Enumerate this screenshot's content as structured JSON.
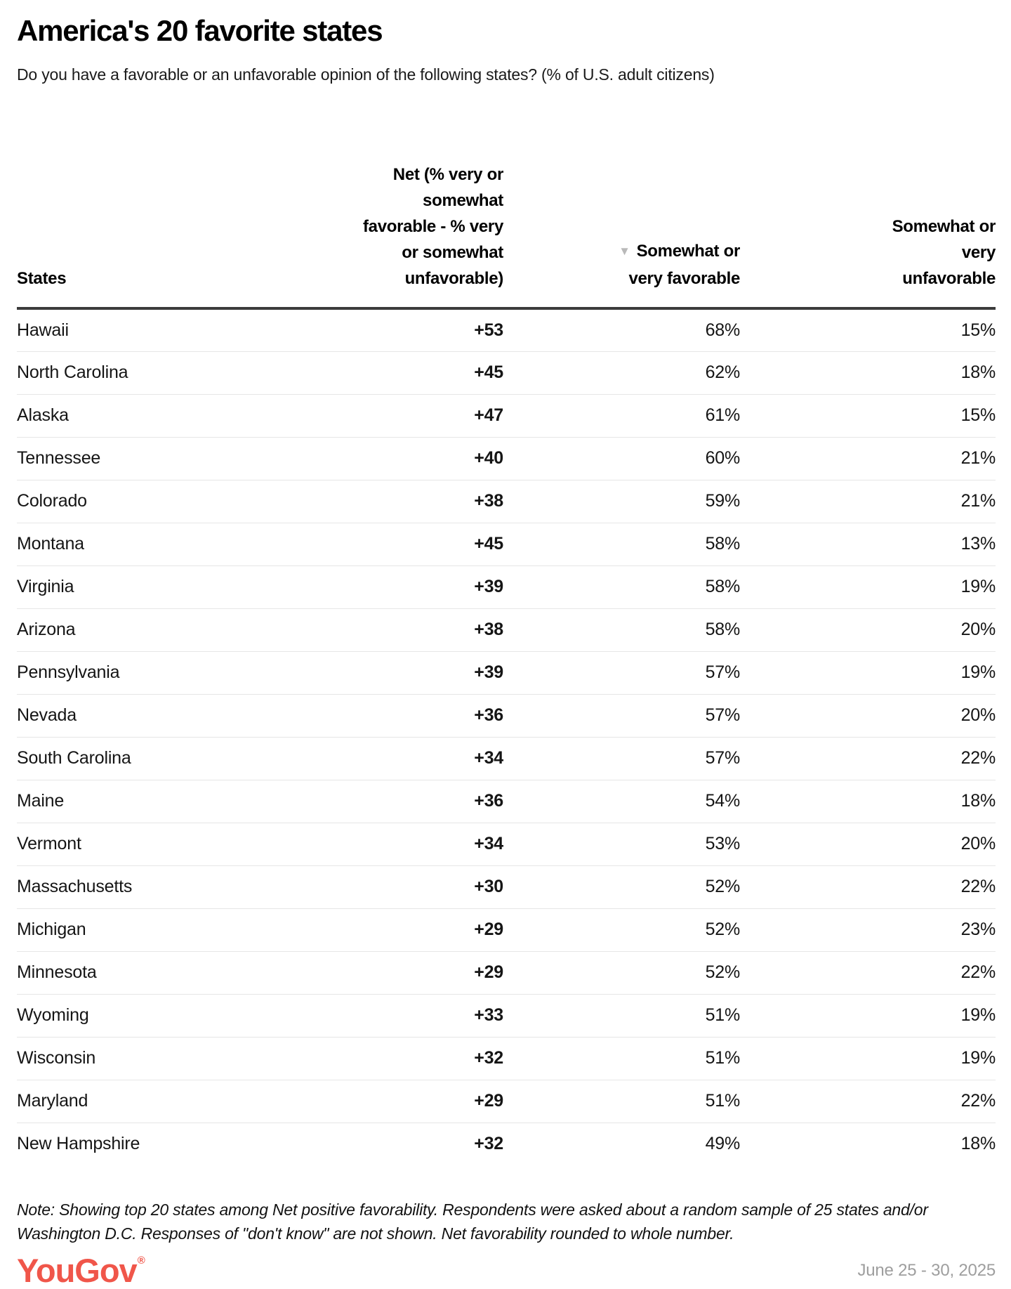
{
  "header": {
    "title": "America's 20 favorite states",
    "subtitle": "Do you have a favorable or an unfavorable opinion of the following states? (% of U.S. adult citizens)"
  },
  "chart_data": {
    "type": "table",
    "title": "America's 20 favorite states",
    "subtitle": "Do you have a favorable or an unfavorable opinion of the following states? (% of U.S. adult citizens)",
    "columns": {
      "states": "States",
      "net": "Net (% very or\nsomewhat\nfavorable - % very\nor somewhat\nunfavorable)",
      "favorable": "Somewhat or\nvery favorable",
      "unfavorable": "Somewhat or\nvery\nunfavorable"
    },
    "sort": {
      "column": "Somewhat or very favorable",
      "direction": "descending",
      "indicator": "▼"
    },
    "rows": [
      {
        "state": "Hawaii",
        "net": "+53",
        "favorable": "68%",
        "unfavorable": "15%"
      },
      {
        "state": "North Carolina",
        "net": "+45",
        "favorable": "62%",
        "unfavorable": "18%"
      },
      {
        "state": "Alaska",
        "net": "+47",
        "favorable": "61%",
        "unfavorable": "15%"
      },
      {
        "state": "Tennessee",
        "net": "+40",
        "favorable": "60%",
        "unfavorable": "21%"
      },
      {
        "state": "Colorado",
        "net": "+38",
        "favorable": "59%",
        "unfavorable": "21%"
      },
      {
        "state": "Montana",
        "net": "+45",
        "favorable": "58%",
        "unfavorable": "13%"
      },
      {
        "state": "Virginia",
        "net": "+39",
        "favorable": "58%",
        "unfavorable": "19%"
      },
      {
        "state": "Arizona",
        "net": "+38",
        "favorable": "58%",
        "unfavorable": "20%"
      },
      {
        "state": "Pennsylvania",
        "net": "+39",
        "favorable": "57%",
        "unfavorable": "19%"
      },
      {
        "state": "Nevada",
        "net": "+36",
        "favorable": "57%",
        "unfavorable": "20%"
      },
      {
        "state": "South Carolina",
        "net": "+34",
        "favorable": "57%",
        "unfavorable": "22%"
      },
      {
        "state": "Maine",
        "net": "+36",
        "favorable": "54%",
        "unfavorable": "18%"
      },
      {
        "state": "Vermont",
        "net": "+34",
        "favorable": "53%",
        "unfavorable": "20%"
      },
      {
        "state": "Massachusetts",
        "net": "+30",
        "favorable": "52%",
        "unfavorable": "22%"
      },
      {
        "state": "Michigan",
        "net": "+29",
        "favorable": "52%",
        "unfavorable": "23%"
      },
      {
        "state": "Minnesota",
        "net": "+29",
        "favorable": "52%",
        "unfavorable": "22%"
      },
      {
        "state": "Wyoming",
        "net": "+33",
        "favorable": "51%",
        "unfavorable": "19%"
      },
      {
        "state": "Wisconsin",
        "net": "+32",
        "favorable": "51%",
        "unfavorable": "19%"
      },
      {
        "state": "Maryland",
        "net": "+29",
        "favorable": "51%",
        "unfavorable": "22%"
      },
      {
        "state": "New Hampshire",
        "net": "+32",
        "favorable": "49%",
        "unfavorable": "18%"
      }
    ]
  },
  "footer": {
    "note": "Note: Showing top 20 states among Net positive favorability. Respondents were asked about a random sample of 25 states and/or Washington D.C. Responses of \"don't know\" are not shown. Net favorability rounded to whole number.",
    "logo_text": "YouGov",
    "logo_registered_mark": "®",
    "date_range": "June 25 - 30, 2025"
  },
  "colors": {
    "logo_accent": "#f0564a",
    "sort_indicator": "#b9b9b9",
    "date_text": "#9e9e9e",
    "header_rule": "#3b3b3b",
    "row_divider": "#e6e6e6"
  }
}
